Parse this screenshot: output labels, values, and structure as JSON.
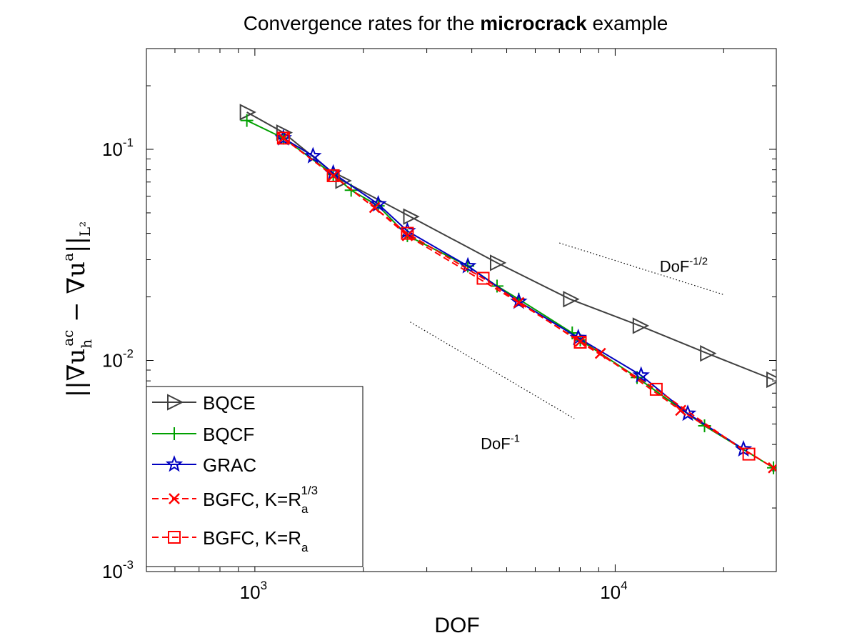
{
  "chart_data": {
    "type": "line",
    "title": {
      "prefix": "Convergence rates for the ",
      "emphasis": "microcrack",
      "suffix": " example"
    },
    "xlabel": "DOF",
    "ylabel": {
      "main": "||∇u",
      "sup": "ac",
      "sub": "h",
      "mid": " − ∇u",
      "sup2": "a",
      "end": "||",
      "subend": "L²"
    },
    "xscale": "log",
    "yscale": "log",
    "xlim": [
      500,
      28000
    ],
    "ylim": [
      0.001,
      0.3
    ],
    "xticks": [
      {
        "value": 1000,
        "base": "10",
        "exp": "3"
      },
      {
        "value": 10000,
        "base": "10",
        "exp": "4"
      }
    ],
    "yticks": [
      {
        "value": 0.001,
        "base": "10",
        "exp": "-3"
      },
      {
        "value": 0.01,
        "base": "10",
        "exp": "-2"
      },
      {
        "value": 0.1,
        "base": "10",
        "exp": "-1"
      }
    ],
    "grid": false,
    "legend": {
      "placement": "bottom-left"
    },
    "series": [
      {
        "name": "BQCE",
        "color": "#404040",
        "dash": "solid",
        "marker": "triangle-right",
        "x": [
          950,
          1200,
          1750,
          2700,
          4700,
          7500,
          11700,
          18000,
          27500
        ],
        "y": [
          0.15,
          0.12,
          0.071,
          0.048,
          0.029,
          0.0195,
          0.0146,
          0.0108,
          0.0081
        ]
      },
      {
        "name": "BQCF",
        "color": "#00a000",
        "dash": "solid",
        "marker": "plus",
        "x": [
          950,
          1200,
          1650,
          1850,
          2200,
          2650,
          3900,
          4700,
          5400,
          7600,
          8000,
          11500,
          17700,
          27500
        ],
        "y": [
          0.137,
          0.113,
          0.076,
          0.064,
          0.054,
          0.039,
          0.028,
          0.0225,
          0.0195,
          0.0135,
          0.0125,
          0.0083,
          0.0049,
          0.0031
        ]
      },
      {
        "name": "GRAC",
        "color": "#0000c0",
        "dash": "solid",
        "marker": "star",
        "x": [
          1200,
          1450,
          1650,
          2200,
          2650,
          3900,
          5400,
          7900,
          11800,
          15900,
          22700
        ],
        "y": [
          0.113,
          0.093,
          0.077,
          0.055,
          0.041,
          0.028,
          0.019,
          0.0128,
          0.0085,
          0.0056,
          0.0038
        ]
      },
      {
        "name": "BGFC, K=R",
        "nameSub": "a",
        "nameSup": "1/3",
        "color": "#ff0000",
        "dash": "dashed",
        "marker": "x",
        "x": [
          1200,
          1650,
          2150,
          2650,
          5400,
          8000,
          9100,
          15200,
          27500
        ],
        "y": [
          0.113,
          0.075,
          0.053,
          0.039,
          0.0188,
          0.0123,
          0.0108,
          0.0058,
          0.0031
        ]
      },
      {
        "name": "BGFC, K=R",
        "nameSub": "a",
        "nameSup": "",
        "color": "#ff0000",
        "dash": "dashed",
        "marker": "square",
        "x": [
          1200,
          1650,
          2650,
          4300,
          8000,
          13000,
          23500
        ],
        "y": [
          0.113,
          0.075,
          0.04,
          0.0245,
          0.0122,
          0.0073,
          0.0036
        ]
      }
    ],
    "reference_lines": [
      {
        "x": [
          7000,
          20000
        ],
        "y": [
          0.036,
          0.0205
        ]
      },
      {
        "x": [
          2700,
          7700
        ],
        "y": [
          0.0152,
          0.0053
        ]
      }
    ],
    "annotations": [
      {
        "text": "DoF",
        "sup": "-1/2",
        "x": 15500,
        "y": 0.0263
      },
      {
        "text": "DoF",
        "sup": "-1",
        "x": 4800,
        "y": 0.0038
      }
    ]
  }
}
